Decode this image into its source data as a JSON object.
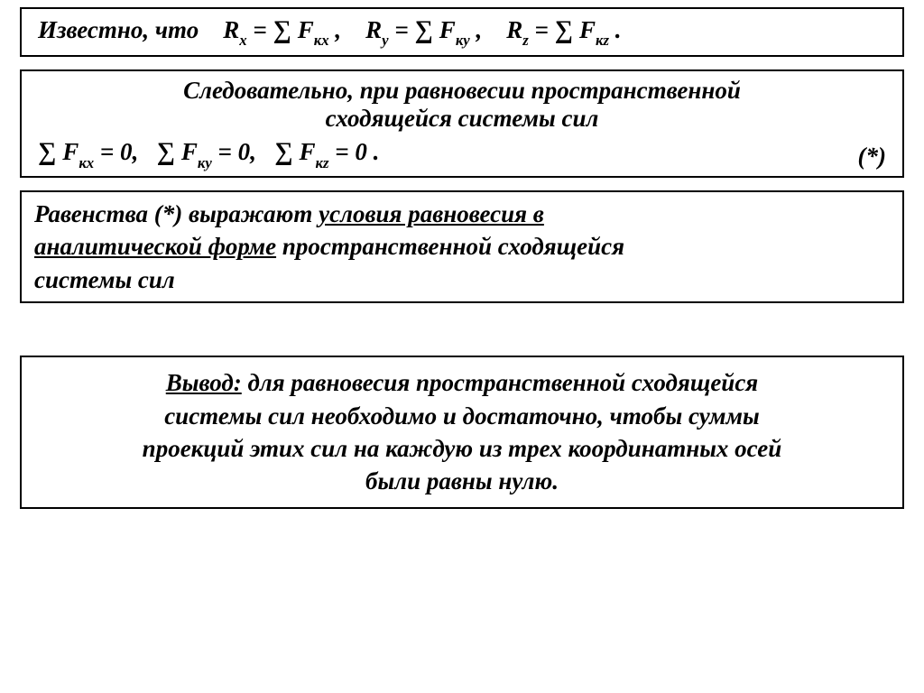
{
  "box1": {
    "prefix": "Известно, что   ",
    "Rx_lhs_base": "R",
    "Rx_lhs_sub": "x",
    "eq": " = ",
    "sum": "∑ ",
    "F": "F",
    "kx": "кx",
    "comma": " ,   ",
    "Ry_lhs_sub": "y",
    "ky": "кy",
    "Rz_lhs_sub": "z",
    "kz": "кz",
    "period": " ."
  },
  "box2": {
    "line1": "Следовательно, при равновесии пространственной",
    "line2": "сходящейся системы сил",
    "eq_sum": "∑ ",
    "F": "F",
    "kx": "кx",
    "ky": "кy",
    "kz": "кz",
    "eq0": " = 0",
    "comma": ",  ",
    "period": " .",
    "star": "(*)"
  },
  "box3": {
    "t1": "Равенства (*) выражают ",
    "u1": "условия равновесия в",
    "u2": "аналитической форме",
    "t2": " пространственной сходящейся",
    "t3": "системы сил"
  },
  "box4": {
    "lead": "Вывод:",
    "l1": " для равновесия пространственной сходящейся",
    "l2": "системы сил необходимо и достаточно, чтобы суммы",
    "l3": "проекций этих сил на каждую из трех координатных осей",
    "l4": "были равны нулю."
  }
}
